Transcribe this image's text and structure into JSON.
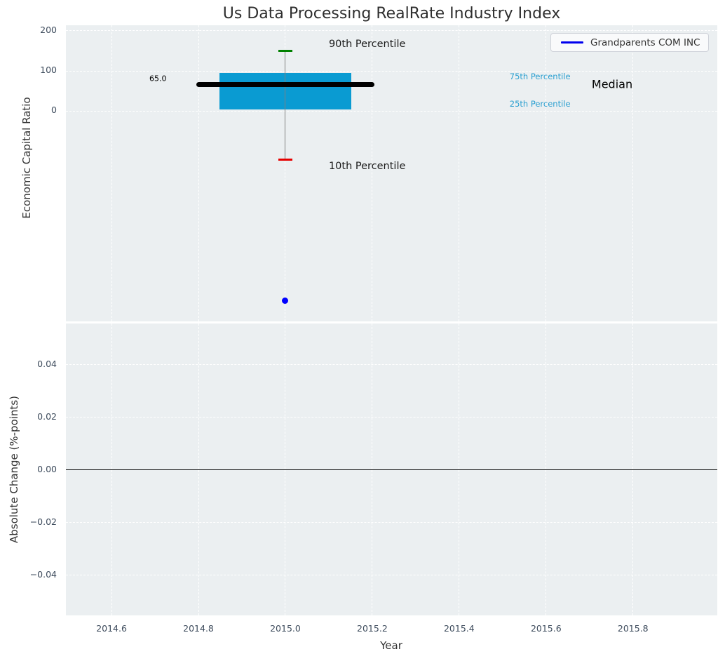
{
  "figure": {
    "title": "Us Data Processing RealRate Industry Index",
    "background": "#ffffff",
    "plot_background": "#ebeff1",
    "grid_color": "#ffffff",
    "tick_color": "#3d4b5c"
  },
  "legend": {
    "label": "Grandparents COM INC",
    "line_color": "#0000ee",
    "position": "upper-right"
  },
  "chart_data": [
    {
      "type": "boxplot",
      "panel": "economic-capital-ratio",
      "ylabel": "Economic Capital Ratio",
      "xlabel": "",
      "xlim": [
        2014.495,
        2015.994
      ],
      "ylim": [
        -526,
        214
      ],
      "yticks": [
        0,
        100,
        200
      ],
      "ytick_labels": [
        "0",
        "100",
        "200"
      ],
      "xticks": [
        2014.6,
        2014.8,
        2015.0,
        2015.2,
        2015.4,
        2015.6,
        2015.8
      ],
      "xtick_labels": [],
      "grid": true,
      "legend_position": "upper right",
      "box": {
        "x": 2015.0,
        "median": 65.0,
        "median_label": "65.0",
        "q1": 4,
        "q3": 95,
        "p10": -122,
        "p90": 150,
        "box_half_width": 0.151,
        "median_half_width": 0.205,
        "cap_half_width": 0.0155,
        "box_color": "#0a9bd2",
        "median_color": "#000000",
        "p90_cap_color": "#008000",
        "p10_cap_color": "#e60000",
        "whisker_color": "#808080"
      },
      "company_point": {
        "x": 2015.0,
        "y": -475,
        "color": "#0000ff",
        "name": "Grandparents COM INC"
      },
      "annotations": [
        {
          "text": "90th Percentile",
          "x": 2015.1,
          "y": 167,
          "color": "#1a1a1a",
          "size": 14.5
        },
        {
          "text": "10th Percentile",
          "x": 2015.1,
          "y": -139,
          "color": "#1a1a1a",
          "size": 14.5
        },
        {
          "text": "75th Percentile",
          "x": 2015.516,
          "y": 86,
          "color": "#2a9fd0",
          "size": 11.5
        },
        {
          "text": "25th Percentile",
          "x": 2015.516,
          "y": 17,
          "color": "#2a9fd0",
          "size": 11.5
        },
        {
          "text": "Median",
          "x": 2015.705,
          "y": 66,
          "color": "#000000",
          "size": 16
        },
        {
          "text": "65.0",
          "x": 2014.687,
          "y": 80,
          "color": "#000000",
          "size": 11
        }
      ]
    },
    {
      "type": "line",
      "panel": "absolute-change",
      "ylabel": "Absolute Change (%-points)",
      "xlabel": "Year",
      "xlim": [
        2014.495,
        2015.994
      ],
      "ylim": [
        -0.0552,
        0.0557
      ],
      "yticks": [
        -0.04,
        -0.02,
        0,
        0.02,
        0.04
      ],
      "ytick_labels": [
        "−0.04",
        "−0.02",
        "0.00",
        "0.02",
        "0.04"
      ],
      "xticks": [
        2014.6,
        2014.8,
        2015.0,
        2015.2,
        2015.4,
        2015.6,
        2015.8
      ],
      "xtick_labels": [
        "2014.6",
        "2014.8",
        "2015.0",
        "2015.2",
        "2015.4",
        "2015.6",
        "2015.8"
      ],
      "grid": true,
      "zero_line": {
        "y": 0.0,
        "color": "#000000"
      },
      "series": []
    }
  ]
}
